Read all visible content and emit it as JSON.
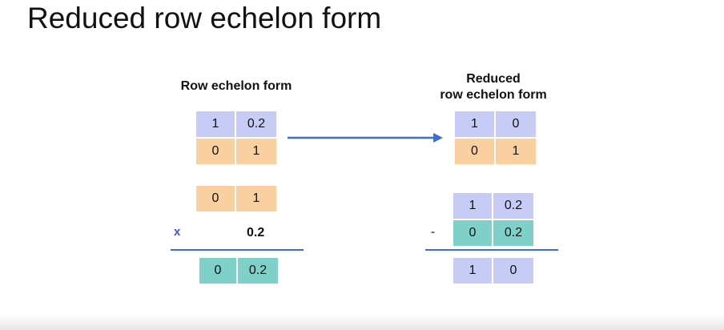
{
  "title": "Reduced row echelon form",
  "left": {
    "heading": "Row echelon form",
    "matrix": [
      [
        "1",
        "0.2"
      ],
      [
        "0",
        "1"
      ]
    ],
    "row_copy": [
      "0",
      "1"
    ],
    "op": "x",
    "scalar": "0.2",
    "result": [
      "0",
      "0.2"
    ]
  },
  "right": {
    "heading_line1": "Reduced",
    "heading_line2": "row echelon form",
    "matrix": [
      [
        "1",
        "0"
      ],
      [
        "0",
        "1"
      ]
    ],
    "row1": [
      "1",
      "0.2"
    ],
    "op": "-",
    "row2": [
      "0",
      "0.2"
    ],
    "result": [
      "1",
      "0"
    ]
  },
  "colors": {
    "row1": "#c6ccf6",
    "row2": "#fbd0a0",
    "scaled": "#7fd0c8",
    "accent": "#3b6ed6"
  }
}
